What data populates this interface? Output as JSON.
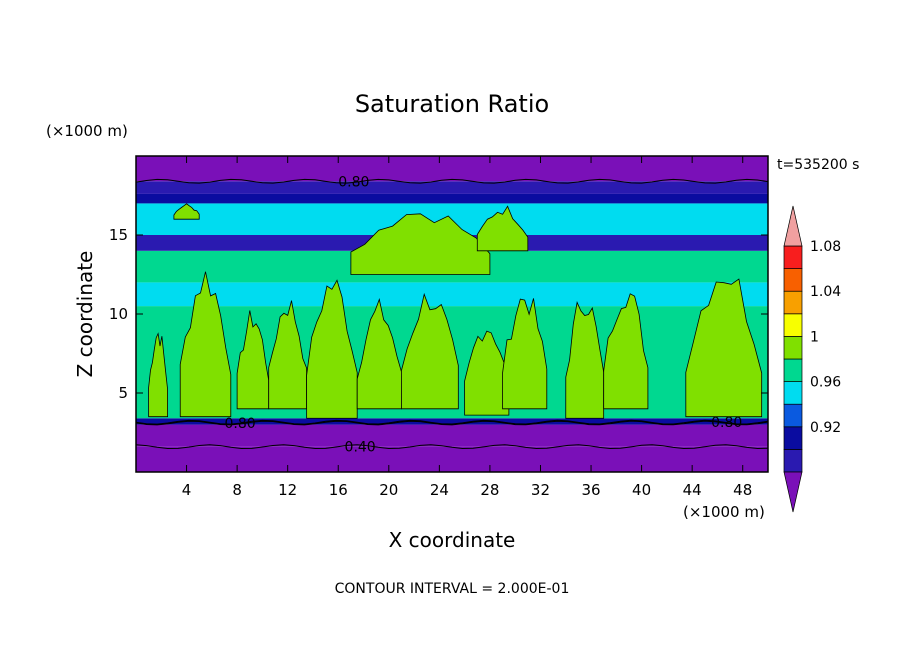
{
  "chart_data": {
    "type": "heatmap",
    "title": "Saturation Ratio",
    "xlabel": "X coordinate",
    "ylabel": "Z coordinate",
    "x_unit": "(×1000 m)",
    "y_unit": "(×1000 m)",
    "time_label": "t=535200 s",
    "footer": "CONTOUR INTERVAL = 2.000E-01",
    "xlim": [
      0,
      50
    ],
    "ylim": [
      0,
      20
    ],
    "x_ticks": [
      4,
      8,
      12,
      16,
      20,
      24,
      28,
      32,
      36,
      40,
      44,
      48
    ],
    "y_ticks": [
      5,
      10,
      15
    ],
    "colorbar": {
      "tick_labels": [
        "0.92",
        "0.96",
        "1",
        "1.04",
        "1.08"
      ],
      "levels": [
        0.9,
        0.92,
        0.94,
        0.96,
        0.98,
        1.0,
        1.02,
        1.04,
        1.06,
        1.08,
        1.1
      ],
      "colors": [
        "#7a10b8",
        "#2a1ab0",
        "#0a0ca0",
        "#0a5ae0",
        "#00dcf0",
        "#00d890",
        "#80e000",
        "#f8ff00",
        "#f8a000",
        "#f86000",
        "#f81e1e",
        "#f0a0a0"
      ]
    },
    "contour_labels": [
      "0.80",
      "0.80",
      "0.40",
      "0.80"
    ],
    "bands": [
      {
        "z_from": 0.0,
        "z_to": 1.6,
        "value": 0.35
      },
      {
        "z_from": 1.6,
        "z_to": 3.0,
        "value": 0.55
      },
      {
        "z_from": 3.0,
        "z_to": 3.4,
        "value": 0.93
      },
      {
        "z_from": 3.4,
        "z_to": 10.5,
        "value": 0.99
      },
      {
        "z_from": 10.5,
        "z_to": 12.0,
        "value": 0.97
      },
      {
        "z_from": 12.0,
        "z_to": 14.0,
        "value": 0.99
      },
      {
        "z_from": 14.0,
        "z_to": 15.0,
        "value": 0.91
      },
      {
        "z_from": 15.0,
        "z_to": 17.0,
        "value": 0.97
      },
      {
        "z_from": 17.0,
        "z_to": 17.6,
        "value": 0.92
      },
      {
        "z_from": 17.6,
        "z_to": 18.4,
        "value": 0.9
      },
      {
        "z_from": 18.4,
        "z_to": 20.0,
        "value": 0.8
      }
    ],
    "cloud_regions": [
      {
        "x": [
          1,
          2.5
        ],
        "z": [
          3.5,
          9.5
        ]
      },
      {
        "x": [
          3.5,
          7.5
        ],
        "z": [
          3.5,
          13.5
        ]
      },
      {
        "x": [
          8,
          10.5
        ],
        "z": [
          4,
          10.5
        ]
      },
      {
        "x": [
          10.5,
          13.5
        ],
        "z": [
          4,
          11.5
        ]
      },
      {
        "x": [
          13.5,
          17.5
        ],
        "z": [
          3.4,
          13
        ]
      },
      {
        "x": [
          17.5,
          21
        ],
        "z": [
          4,
          11
        ]
      },
      {
        "x": [
          21,
          25.5
        ],
        "z": [
          4,
          12
        ]
      },
      {
        "x": [
          26,
          29.5
        ],
        "z": [
          3.6,
          10
        ]
      },
      {
        "x": [
          29,
          32.5
        ],
        "z": [
          4,
          12
        ]
      },
      {
        "x": [
          34,
          37
        ],
        "z": [
          3.4,
          12
        ]
      },
      {
        "x": [
          37,
          40.5
        ],
        "z": [
          4,
          12.5
        ]
      },
      {
        "x": [
          43.5,
          49.5
        ],
        "z": [
          3.5,
          14
        ]
      },
      {
        "x": [
          17,
          28
        ],
        "z": [
          12.5,
          17
        ]
      },
      {
        "x": [
          27,
          31
        ],
        "z": [
          14,
          17
        ]
      },
      {
        "x": [
          3,
          5
        ],
        "z": [
          16,
          17
        ]
      }
    ]
  }
}
